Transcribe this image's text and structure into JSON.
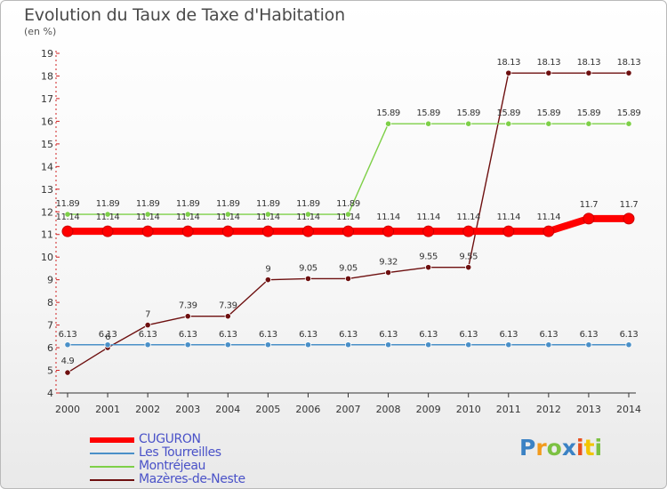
{
  "chart_data": {
    "type": "line",
    "title": "Evolution du Taux de Taxe d'Habitation",
    "subtitle": "(en %)",
    "x": [
      "2000",
      "2001",
      "2002",
      "2003",
      "2004",
      "2005",
      "2006",
      "2007",
      "2008",
      "2009",
      "2010",
      "2011",
      "2012",
      "2013",
      "2014"
    ],
    "ylim": [
      4,
      19
    ],
    "yticks": [
      "4",
      "5",
      "6",
      "7",
      "8",
      "9",
      "10",
      "11",
      "12",
      "13",
      "14",
      "15",
      "16",
      "17",
      "18",
      "19"
    ],
    "grid": false,
    "legend_position": "bottom-left",
    "series": [
      {
        "name": "Mazères-de-Neste",
        "color": "#6e1010",
        "values": [
          4.9,
          6.0,
          7.0,
          7.39,
          7.39,
          9.0,
          9.05,
          9.05,
          9.32,
          9.55,
          9.55,
          18.13,
          18.13,
          18.13,
          18.13
        ],
        "labels": [
          "4.9",
          "6",
          "7",
          "7.39",
          "7.39",
          "9",
          "9.05",
          "9.05",
          "9.32",
          "9.55",
          "9.55",
          "18.13",
          "18.13",
          "18.13",
          "18.13"
        ]
      },
      {
        "name": "Les Tourreilles",
        "color": "#4a90c8",
        "values": [
          6.13,
          6.13,
          6.13,
          6.13,
          6.13,
          6.13,
          6.13,
          6.13,
          6.13,
          6.13,
          6.13,
          6.13,
          6.13,
          6.13,
          6.13
        ],
        "labels": [
          "6.13",
          "6.13",
          "6.13",
          "6.13",
          "6.13",
          "6.13",
          "6.13",
          "6.13",
          "6.13",
          "6.13",
          "6.13",
          "6.13",
          "6.13",
          "6.13",
          "6.13"
        ]
      },
      {
        "name": "Montréjeau",
        "color": "#7ed048",
        "values": [
          11.89,
          11.89,
          11.89,
          11.89,
          11.89,
          11.89,
          11.89,
          11.89,
          15.89,
          15.89,
          15.89,
          15.89,
          15.89,
          15.89,
          15.89
        ],
        "labels": [
          "11.89",
          "11.89",
          "11.89",
          "11.89",
          "11.89",
          "11.89",
          "11.89",
          "11.89",
          "15.89",
          "15.89",
          "15.89",
          "15.89",
          "15.89",
          "15.89",
          "15.89"
        ]
      },
      {
        "name": "CUGURON",
        "color": "#ff0000",
        "values": [
          11.14,
          11.14,
          11.14,
          11.14,
          11.14,
          11.14,
          11.14,
          11.14,
          11.14,
          11.14,
          11.14,
          11.14,
          11.14,
          11.7,
          11.7
        ],
        "labels": [
          "11.14",
          "11.14",
          "11.14",
          "11.14",
          "11.14",
          "11.14",
          "11.14",
          "11.14",
          "11.14",
          "11.14",
          "11.14",
          "11.14",
          "11.14",
          "11.7",
          "11.7"
        ]
      }
    ],
    "legend": [
      "CUGURON",
      "Les Tourreilles",
      "Montréjeau",
      "Mazères-de-Neste"
    ]
  },
  "logo": {
    "letters": [
      "P",
      "r",
      "o",
      "x",
      "i",
      "t",
      "i"
    ],
    "colors": [
      "#3b82c4",
      "#f29b1d",
      "#7cc142",
      "#3b82c4",
      "#e8501e",
      "#f2c500",
      "#7cc142"
    ]
  }
}
